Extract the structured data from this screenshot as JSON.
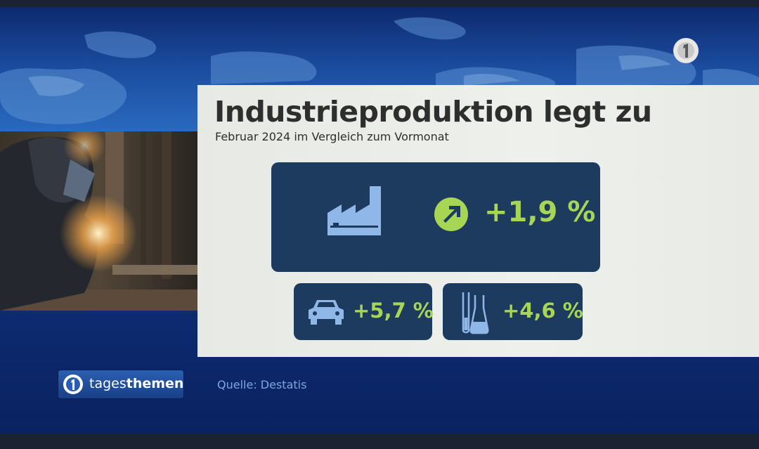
{
  "headline": {
    "title": "Industrieproduktion legt zu",
    "subtitle": "Februar 2024 im Vergleich zum Vormonat"
  },
  "stats": {
    "total": {
      "icon": "factory-icon",
      "indicator": "arrow-up-right-icon",
      "value": "+1,9 %"
    },
    "auto": {
      "icon": "car-icon",
      "value": "+5,7 %"
    },
    "chemie": {
      "icon": "lab-flask-icon",
      "value": "+4,6 %"
    }
  },
  "source": "Quelle: Destatis",
  "show_logo": {
    "name_light": "tages",
    "name_bold": "themen"
  },
  "colors": {
    "card": "#1d3a5f",
    "value": "#a6d654",
    "icon": "#8fb8e8",
    "panel": "#eceeea",
    "title": "#2e2e2e",
    "source": "#7ea6dc"
  }
}
